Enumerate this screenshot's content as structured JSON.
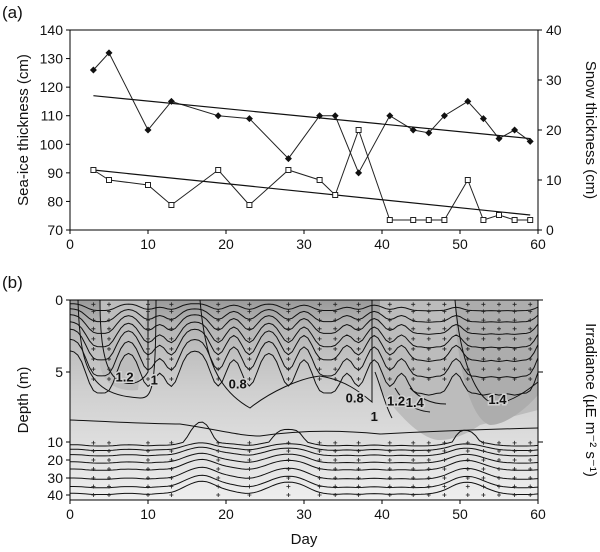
{
  "chart_data": [
    {
      "panel_label": "(a)",
      "type": "line",
      "xlim": [
        0,
        60
      ],
      "x_ticks": [
        "0",
        "10",
        "20",
        "30",
        "40",
        "50",
        "60"
      ],
      "ylabel": "Sea-ice thickness (cm)",
      "ylim": [
        70,
        140
      ],
      "y_ticks": [
        "70",
        "80",
        "90",
        "100",
        "110",
        "120",
        "130",
        "140"
      ],
      "y2label": "Snow thickness (cm)",
      "y2lim": [
        0,
        40
      ],
      "y2_ticks": [
        "0",
        "10",
        "20",
        "30",
        "40"
      ],
      "series": [
        {
          "axis": "left",
          "marker": "filled-diamond",
          "x": [
            3,
            5,
            10,
            13,
            19,
            23,
            28,
            32,
            34,
            37,
            41,
            44,
            46,
            48,
            51,
            53,
            55,
            57,
            59
          ],
          "y": [
            126,
            132,
            105,
            115,
            110,
            109,
            95,
            110,
            110,
            90,
            110,
            105,
            104,
            110,
            115,
            109,
            102,
            105,
            101
          ],
          "trend": [
            [
              3,
              117
            ],
            [
              59,
              102
            ]
          ]
        },
        {
          "axis": "right",
          "marker": "open-square",
          "x": [
            3,
            5,
            10,
            13,
            19,
            23,
            28,
            32,
            34,
            37,
            41,
            44,
            46,
            48,
            51,
            53,
            55,
            57,
            59
          ],
          "y": [
            12,
            10,
            9,
            5,
            12,
            5,
            12,
            10,
            7,
            20,
            2,
            2,
            2,
            2,
            10,
            2,
            3,
            2,
            2
          ],
          "trend": [
            [
              3,
              12
            ],
            [
              59,
              3
            ]
          ]
        }
      ]
    },
    {
      "panel_label": "(b)",
      "type": "heatmap",
      "xlabel": "Day",
      "xlim": [
        0,
        60
      ],
      "x_ticks": [
        "0",
        "10",
        "20",
        "30",
        "40",
        "50",
        "60"
      ],
      "ylabel": "Depth (m)",
      "y_ticks": [
        "0",
        "5",
        "10",
        "20",
        "30",
        "40"
      ],
      "y2label": "Irradiance (µE m⁻² s⁻¹)",
      "y2_marks": [
        0,
        5,
        10
      ],
      "sample_days": [
        3,
        5,
        10,
        13,
        19,
        23,
        28,
        32,
        34,
        37,
        41,
        44,
        46,
        48,
        51,
        53,
        55,
        57,
        59
      ],
      "contour_labels": [
        {
          "text": "1.2",
          "x": 7,
          "depth": 5.4
        },
        {
          "text": "1",
          "x": 10.8,
          "depth": 5.6
        },
        {
          "text": "0.8",
          "x": 21.5,
          "depth": 5.9
        },
        {
          "text": "0.8",
          "x": 36.5,
          "depth": 6.9
        },
        {
          "text": "1.2",
          "x": 41.8,
          "depth": 7.1
        },
        {
          "text": "1",
          "x": 39,
          "depth": 8.2
        },
        {
          "text": "1.4",
          "x": 44.2,
          "depth": 7.2
        },
        {
          "text": "1.4",
          "x": 54.8,
          "depth": 7.0
        }
      ]
    }
  ]
}
